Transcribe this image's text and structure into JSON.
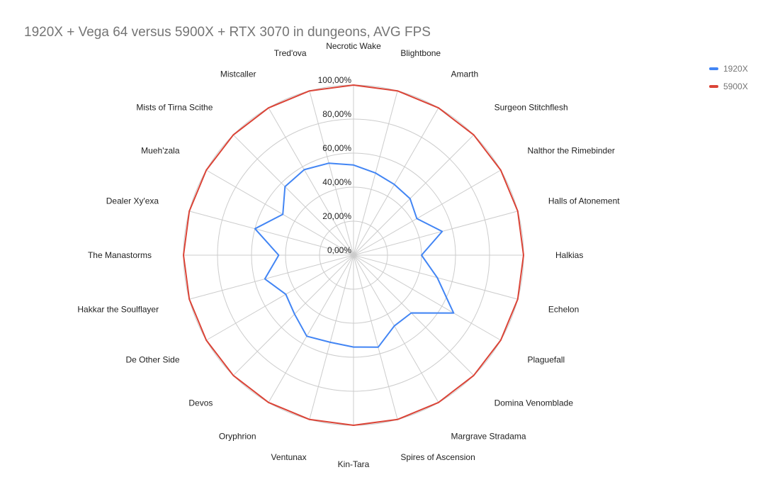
{
  "chart_data": {
    "type": "radar",
    "title": "1920X + Vega 64 versus 5900X + RTX 3070 in dungeons, AVG FPS",
    "categories": [
      "Necrotic Wake",
      "Blightbone",
      "Amarth",
      "Surgeon Stitchflesh",
      "Nalthor the Rimebinder",
      "Halls of Atonement",
      "Halkias",
      "Echelon",
      "Plaguefall",
      "Domina Venomblade",
      "Margrave Stradama",
      "Spires of Ascension",
      "Kin-Tara",
      "Ventunax",
      "Oryphrion",
      "Devos",
      "De Other Side",
      "Hakkar the Soulflayer",
      "The Manastorms",
      "Dealer Xy'exa",
      "Mueh'zala",
      "Mists of Tirna Scithe",
      "Mistcaller",
      "Tred'ova"
    ],
    "tick_labels": [
      "0,00%",
      "20,00%",
      "40,00%",
      "60,00%",
      "80,00%",
      "100,00%"
    ],
    "axis_range": [
      0,
      100
    ],
    "legend_position": "right",
    "series": [
      {
        "name": "1920X",
        "color": "#4285f4",
        "values": [
          53,
          50,
          48,
          47,
          43,
          54,
          40,
          51,
          68,
          48,
          48,
          56,
          54,
          53,
          55,
          49,
          46,
          54,
          44,
          60,
          48,
          57,
          58,
          56
        ]
      },
      {
        "name": "5900X",
        "color": "#db4437",
        "values": [
          100,
          100,
          100,
          100,
          100,
          100,
          100,
          100,
          100,
          100,
          100,
          100,
          100,
          100,
          100,
          100,
          100,
          100,
          100,
          100,
          100,
          100,
          100,
          100
        ]
      }
    ]
  }
}
